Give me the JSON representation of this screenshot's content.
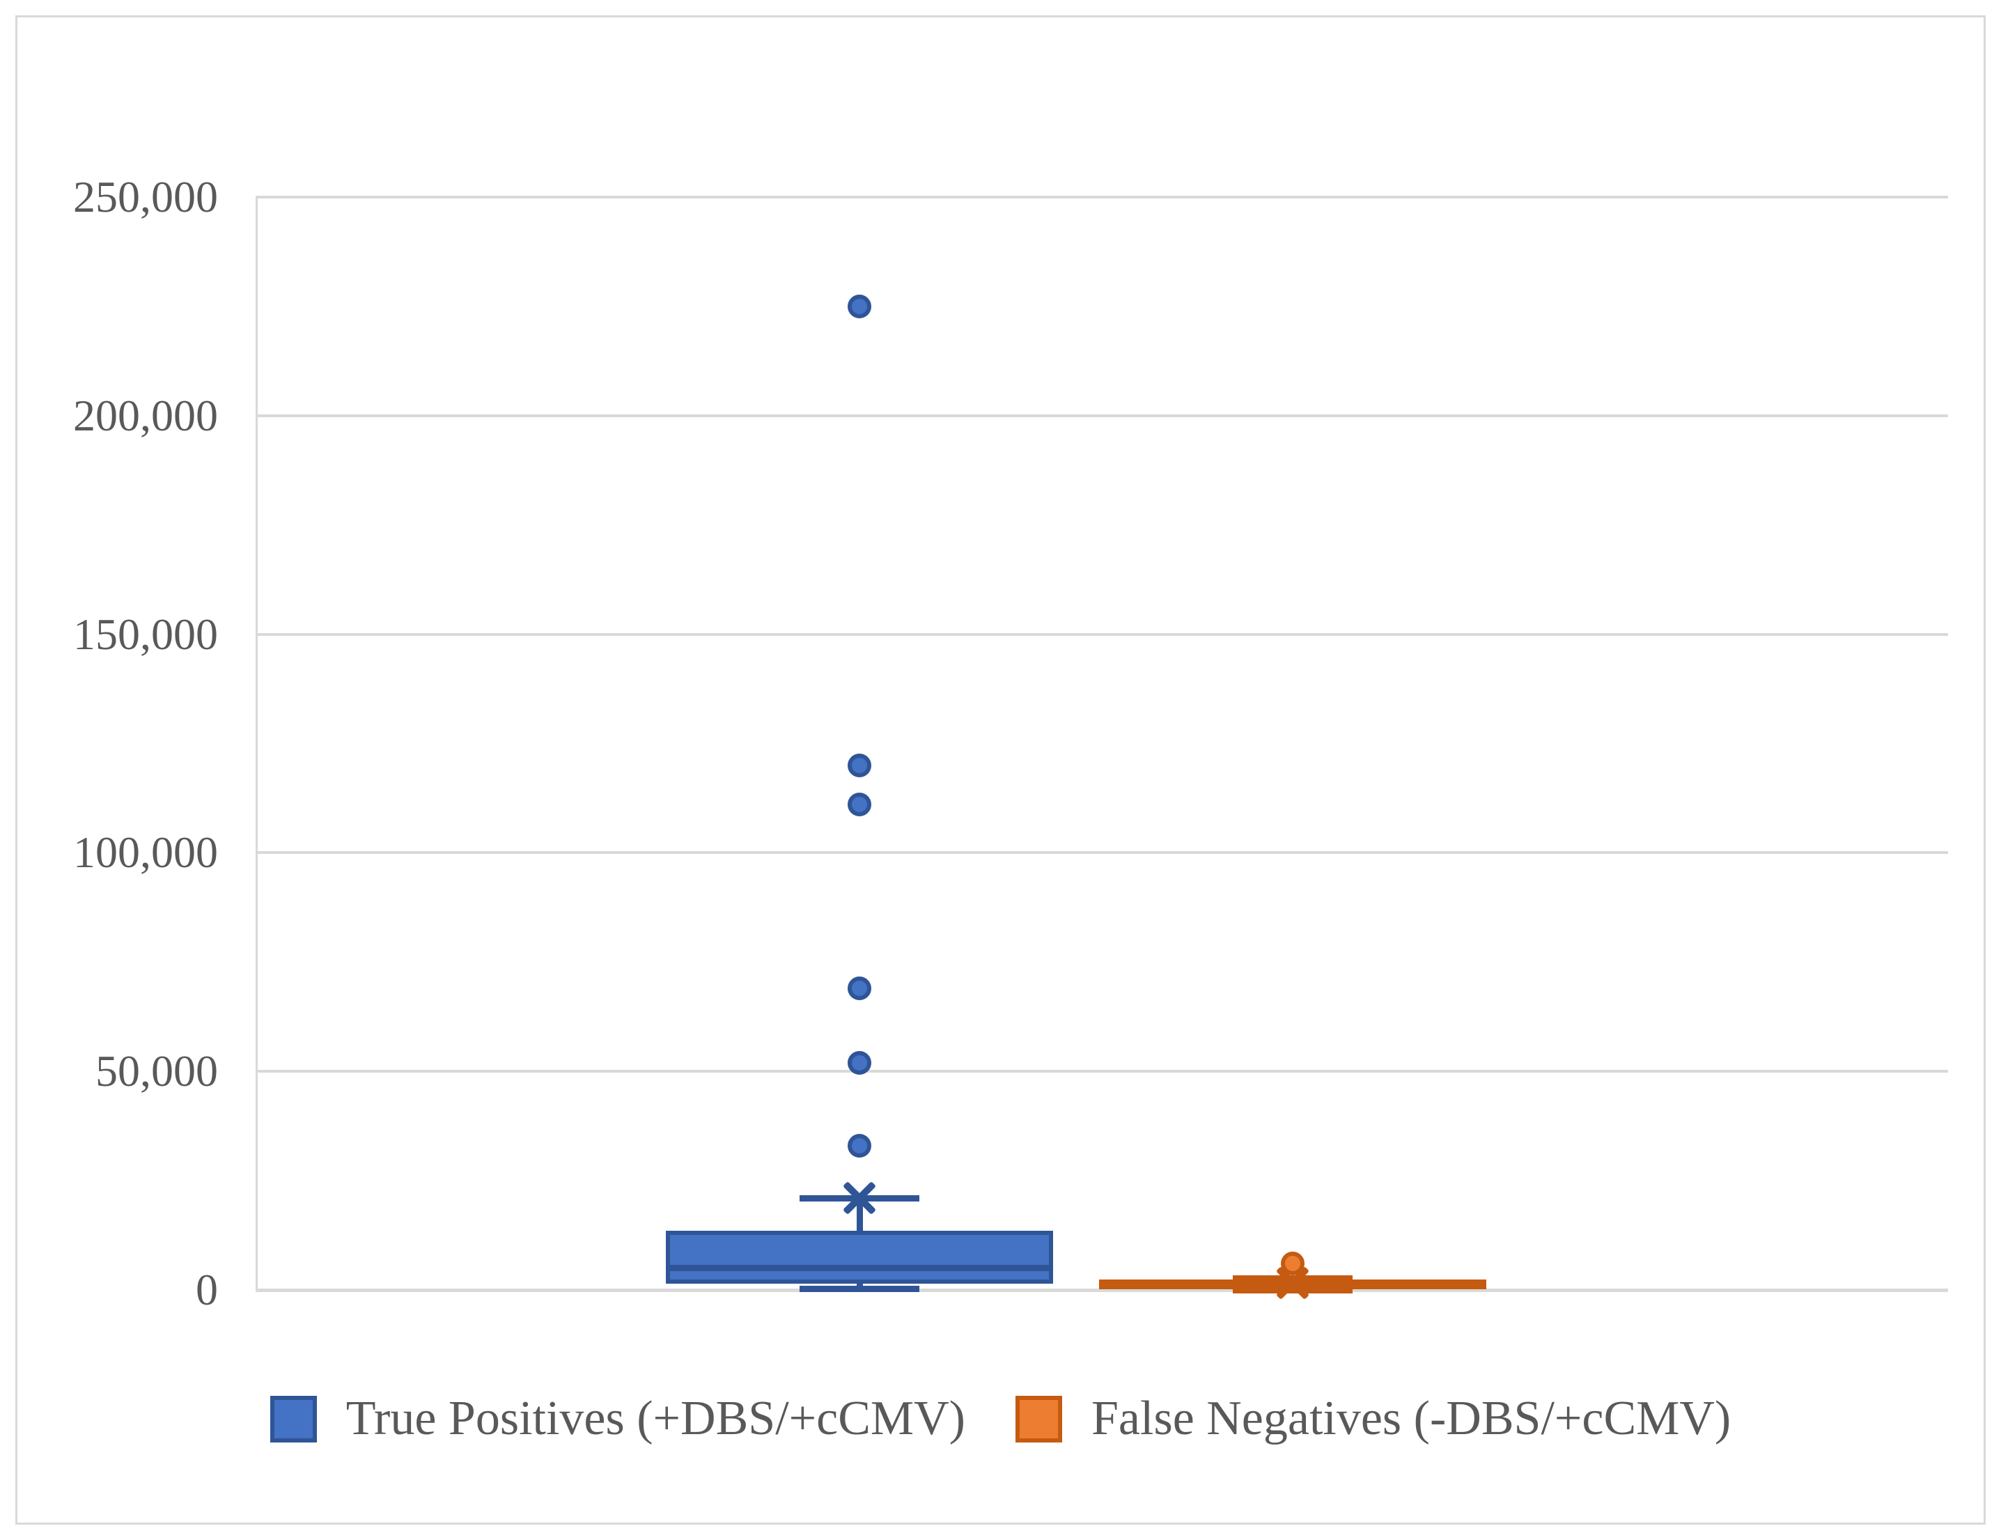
{
  "figure": {
    "background": "#ffffff",
    "frame_color": "#d9d9d9",
    "text_color": "#595959",
    "gridline_color": "#d9d9d9"
  },
  "chart_data": {
    "type": "box",
    "title": "",
    "xlabel": "",
    "ylabel": "",
    "grid": true,
    "legend_position": "bottom",
    "y_axis": {
      "min": 0,
      "max": 250000,
      "tick_interval": 50000,
      "tick_labels": [
        "0",
        "50,000",
        "100,000",
        "150,000",
        "200,000",
        "250,000"
      ]
    },
    "series": [
      {
        "name": "True Positives (+DBS/+cCMV)",
        "color": "#4472c4",
        "border_color": "#2f5597",
        "min": 300,
        "q1": 1500,
        "median": 5000,
        "q3": 13500,
        "max": 21000,
        "mean": 21000,
        "outliers": [
          33000,
          52000,
          69000,
          111000,
          120000,
          225000
        ]
      },
      {
        "name": "False Negatives (-DBS/+cCMV)",
        "color": "#ed7d31",
        "border_color": "#c55a11",
        "min": 0,
        "q1": 200,
        "median": 800,
        "q3": 2400,
        "max": 2700,
        "mean": 1600,
        "outliers": [
          6000
        ]
      }
    ]
  },
  "legend": {
    "items": [
      {
        "label": "True Positives (+DBS/+cCMV)",
        "color": "#4472c4",
        "border_color": "#2f5597"
      },
      {
        "label": "False Negatives (-DBS/+cCMV)",
        "color": "#ed7d31",
        "border_color": "#c55a11"
      }
    ]
  }
}
